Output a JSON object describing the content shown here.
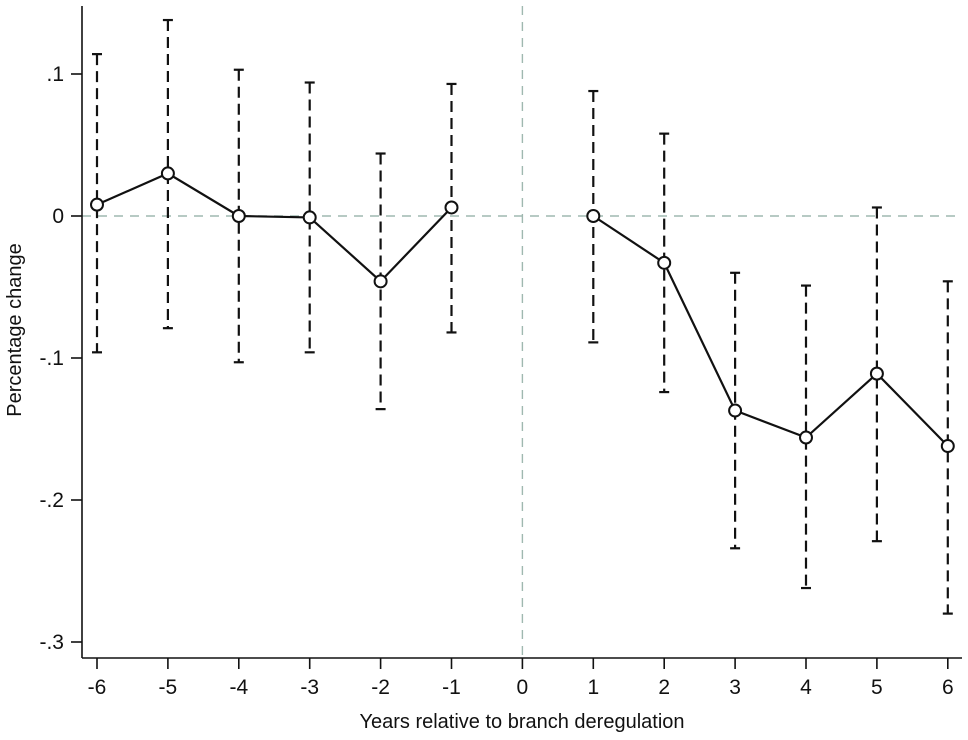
{
  "chart_data": {
    "type": "line",
    "title": "",
    "xlabel": "Years relative to branch deregulation",
    "ylabel": "Percentage change",
    "xlim": [
      -6,
      6
    ],
    "ylim": [
      -0.3,
      0.14
    ],
    "x_ticks": [
      -6,
      -5,
      -4,
      -3,
      -2,
      -1,
      0,
      1,
      2,
      3,
      4,
      5,
      6
    ],
    "x_tick_labels": [
      "-6",
      "-5",
      "-4",
      "-3",
      "-2",
      "-1",
      "0",
      "1",
      "2",
      "3",
      "4",
      "5",
      "6"
    ],
    "y_ticks": [
      0.1,
      0,
      -0.1,
      -0.2,
      -0.3
    ],
    "y_tick_labels": [
      ".1",
      "0",
      "-.1",
      "-.2",
      "-.3"
    ],
    "reference_lines": {
      "x": 0,
      "y": 0
    },
    "grid": false,
    "legend": "none",
    "series": [
      {
        "segments": [
          {
            "x": [
              -6,
              -5,
              -4,
              -3,
              -2,
              -1
            ],
            "y": [
              0.008,
              0.03,
              0.0,
              -0.001,
              -0.046,
              0.006
            ],
            "ci_low": [
              -0.096,
              -0.079,
              -0.103,
              -0.096,
              -0.136,
              -0.082
            ],
            "ci_high": [
              0.114,
              0.138,
              0.103,
              0.094,
              0.044,
              0.093
            ]
          },
          {
            "x": [
              1,
              2,
              3,
              4,
              5,
              6
            ],
            "y": [
              0.0,
              -0.033,
              -0.137,
              -0.156,
              -0.111,
              -0.162
            ],
            "ci_low": [
              -0.089,
              -0.124,
              -0.234,
              -0.262,
              -0.229,
              -0.28
            ],
            "ci_high": [
              0.088,
              0.058,
              -0.04,
              -0.049,
              0.006,
              -0.046
            ]
          }
        ]
      }
    ],
    "colors": {
      "line": "#111111",
      "reference": "#9fb8b0",
      "marker_fill": "#ffffff"
    }
  }
}
